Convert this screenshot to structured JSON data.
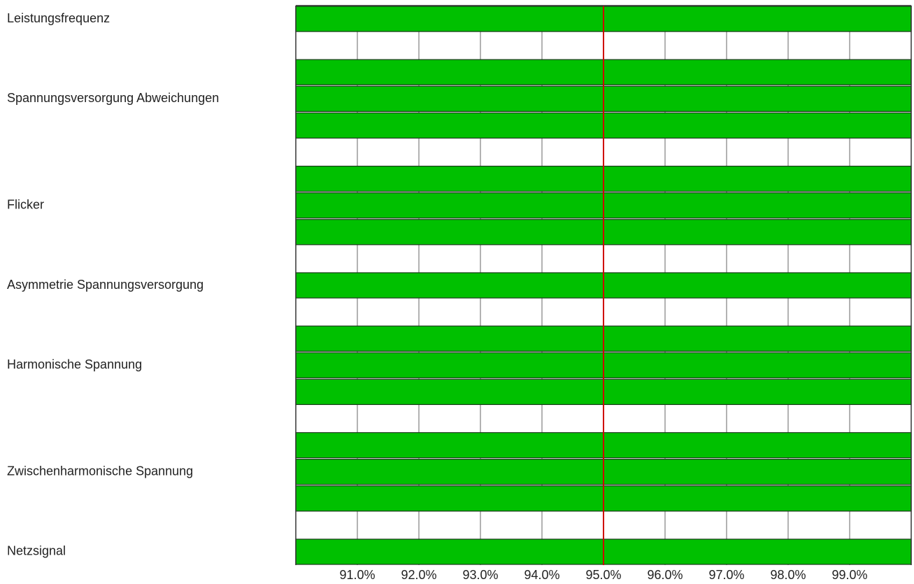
{
  "chart_data": {
    "type": "barh",
    "categories": [
      "Leistungsfrequenz",
      null,
      null,
      "Spannungsversorgung Abweichungen",
      null,
      null,
      null,
      "Flicker",
      null,
      null,
      "Asymmetrie Spannungsversorgung",
      null,
      null,
      "Harmonische Spannung",
      null,
      null,
      null,
      "Zwischenharmonische Spannung",
      null,
      null,
      "Netzsignal"
    ],
    "values": [
      100,
      null,
      100,
      100,
      100,
      null,
      100,
      100,
      100,
      null,
      100,
      null,
      100,
      100,
      100,
      null,
      100,
      100,
      100,
      null,
      100
    ],
    "color": "#00c000",
    "xlim": [
      90,
      100
    ],
    "xticks": [
      {
        "value": 91,
        "label": "91.0%"
      },
      {
        "value": 92,
        "label": "92.0%"
      },
      {
        "value": 93,
        "label": "93.0%"
      },
      {
        "value": 94,
        "label": "94.0%"
      },
      {
        "value": 95,
        "label": "95.0%"
      },
      {
        "value": 96,
        "label": "96.0%"
      },
      {
        "value": 97,
        "label": "97.0%"
      },
      {
        "value": 98,
        "label": "98.0%"
      },
      {
        "value": 99,
        "label": "99.0%"
      }
    ],
    "grid": true,
    "reference_line": 95,
    "reference_color": "#d00000"
  }
}
